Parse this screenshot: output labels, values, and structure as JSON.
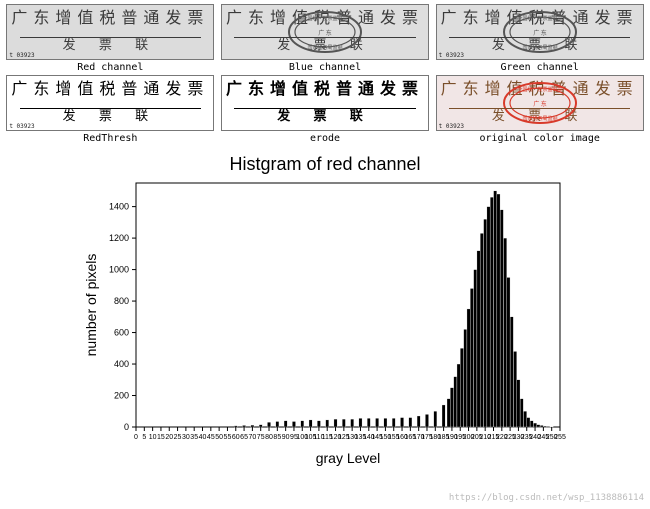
{
  "panels": [
    {
      "caption": "Red channel",
      "title": "广东增值税普通发票",
      "sub": "发 票 联",
      "corner": "t 03923",
      "bg": "#dcdcdc",
      "text_color": "#3a3a3a",
      "hr_color": "#3a3a3a",
      "stamp": false,
      "stamp_color": "#777777",
      "bold": false
    },
    {
      "caption": "Blue channel",
      "title": "广东增值税普通发票",
      "sub": "发 票 联",
      "corner": "",
      "bg": "#dedede",
      "text_color": "#3a3a3a",
      "hr_color": "#3a3a3a",
      "stamp": true,
      "stamp_color": "#555555",
      "bold": false
    },
    {
      "caption": "Green channel",
      "title": "广东增值税普通发票",
      "sub": "发 票 联",
      "corner": "t 03923",
      "bg": "#dedede",
      "text_color": "#3a3a3a",
      "hr_color": "#3a3a3a",
      "stamp": true,
      "stamp_color": "#555555",
      "bold": false
    },
    {
      "caption": "RedThresh",
      "title": "广东增值税普通发票",
      "sub": "发 票 联",
      "corner": "t 03923",
      "bg": "#ffffff",
      "text_color": "#000000",
      "hr_color": "#000000",
      "stamp": false,
      "stamp_color": "#000000",
      "bold": false
    },
    {
      "caption": "erode",
      "title": "广东增值税普通发票",
      "sub": "发 票 联",
      "corner": "",
      "bg": "#ffffff",
      "text_color": "#000000",
      "hr_color": "#000000",
      "stamp": false,
      "stamp_color": "#000000",
      "bold": true
    },
    {
      "caption": "original color image",
      "title": "广东增值税普通发票",
      "sub": "发 票 联",
      "corner": "t 03923",
      "bg": "#f1e6e6",
      "text_color": "#7a4f2a",
      "hr_color": "#7a4f2a",
      "stamp": true,
      "stamp_color": "#d83a2a",
      "bold": false
    }
  ],
  "histogram": {
    "title": "Histgram of red channel",
    "xlabel": "gray Level",
    "ylabel": "number of pixels",
    "xlim": [
      0,
      255
    ],
    "ylim": [
      0,
      1550
    ],
    "xtick_step": 5,
    "ytick_step": 200,
    "ytick_max": 1400,
    "axis_color": "#000000",
    "tick_color": "#000000",
    "bg": "#ffffff",
    "label_fontsize": 14,
    "title_fontsize": 18,
    "tick_fontsize": 7,
    "bar_color": "#000000",
    "bars": [
      {
        "x": 60,
        "y": 8
      },
      {
        "x": 65,
        "y": 10
      },
      {
        "x": 70,
        "y": 12
      },
      {
        "x": 75,
        "y": 15
      },
      {
        "x": 80,
        "y": 30
      },
      {
        "x": 85,
        "y": 35
      },
      {
        "x": 90,
        "y": 40
      },
      {
        "x": 95,
        "y": 35
      },
      {
        "x": 100,
        "y": 40
      },
      {
        "x": 105,
        "y": 45
      },
      {
        "x": 110,
        "y": 40
      },
      {
        "x": 115,
        "y": 45
      },
      {
        "x": 120,
        "y": 50
      },
      {
        "x": 125,
        "y": 50
      },
      {
        "x": 130,
        "y": 50
      },
      {
        "x": 135,
        "y": 55
      },
      {
        "x": 140,
        "y": 55
      },
      {
        "x": 145,
        "y": 55
      },
      {
        "x": 150,
        "y": 55
      },
      {
        "x": 155,
        "y": 55
      },
      {
        "x": 160,
        "y": 60
      },
      {
        "x": 165,
        "y": 60
      },
      {
        "x": 170,
        "y": 70
      },
      {
        "x": 175,
        "y": 80
      },
      {
        "x": 180,
        "y": 100
      },
      {
        "x": 185,
        "y": 140
      },
      {
        "x": 188,
        "y": 180
      },
      {
        "x": 190,
        "y": 250
      },
      {
        "x": 192,
        "y": 320
      },
      {
        "x": 194,
        "y": 400
      },
      {
        "x": 196,
        "y": 500
      },
      {
        "x": 198,
        "y": 620
      },
      {
        "x": 200,
        "y": 750
      },
      {
        "x": 202,
        "y": 880
      },
      {
        "x": 204,
        "y": 1000
      },
      {
        "x": 206,
        "y": 1120
      },
      {
        "x": 208,
        "y": 1230
      },
      {
        "x": 210,
        "y": 1320
      },
      {
        "x": 212,
        "y": 1400
      },
      {
        "x": 214,
        "y": 1460
      },
      {
        "x": 216,
        "y": 1500
      },
      {
        "x": 218,
        "y": 1480
      },
      {
        "x": 220,
        "y": 1380
      },
      {
        "x": 222,
        "y": 1200
      },
      {
        "x": 224,
        "y": 950
      },
      {
        "x": 226,
        "y": 700
      },
      {
        "x": 228,
        "y": 480
      },
      {
        "x": 230,
        "y": 300
      },
      {
        "x": 232,
        "y": 180
      },
      {
        "x": 234,
        "y": 100
      },
      {
        "x": 236,
        "y": 60
      },
      {
        "x": 238,
        "y": 40
      },
      {
        "x": 240,
        "y": 25
      },
      {
        "x": 242,
        "y": 15
      },
      {
        "x": 244,
        "y": 10
      },
      {
        "x": 246,
        "y": 6
      },
      {
        "x": 248,
        "y": 4
      },
      {
        "x": 250,
        "y": 2
      }
    ]
  },
  "watermark": "https://blog.csdn.net/wsp_1138886114"
}
